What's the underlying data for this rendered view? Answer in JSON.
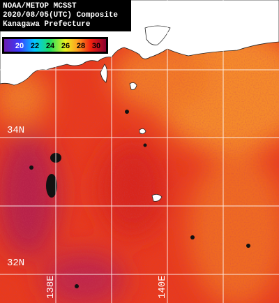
{
  "header": {
    "lines": [
      "NOAA/METOP MCSST",
      "2020/08/05(UTC) Composite",
      "Kanagawa Prefecture"
    ]
  },
  "colorbar": {
    "ticks": [
      20,
      22,
      24,
      26,
      28,
      30
    ]
  },
  "grid": {
    "latitudes": [
      "34N",
      "32N"
    ],
    "longitudes": [
      "138E",
      "140E"
    ]
  }
}
